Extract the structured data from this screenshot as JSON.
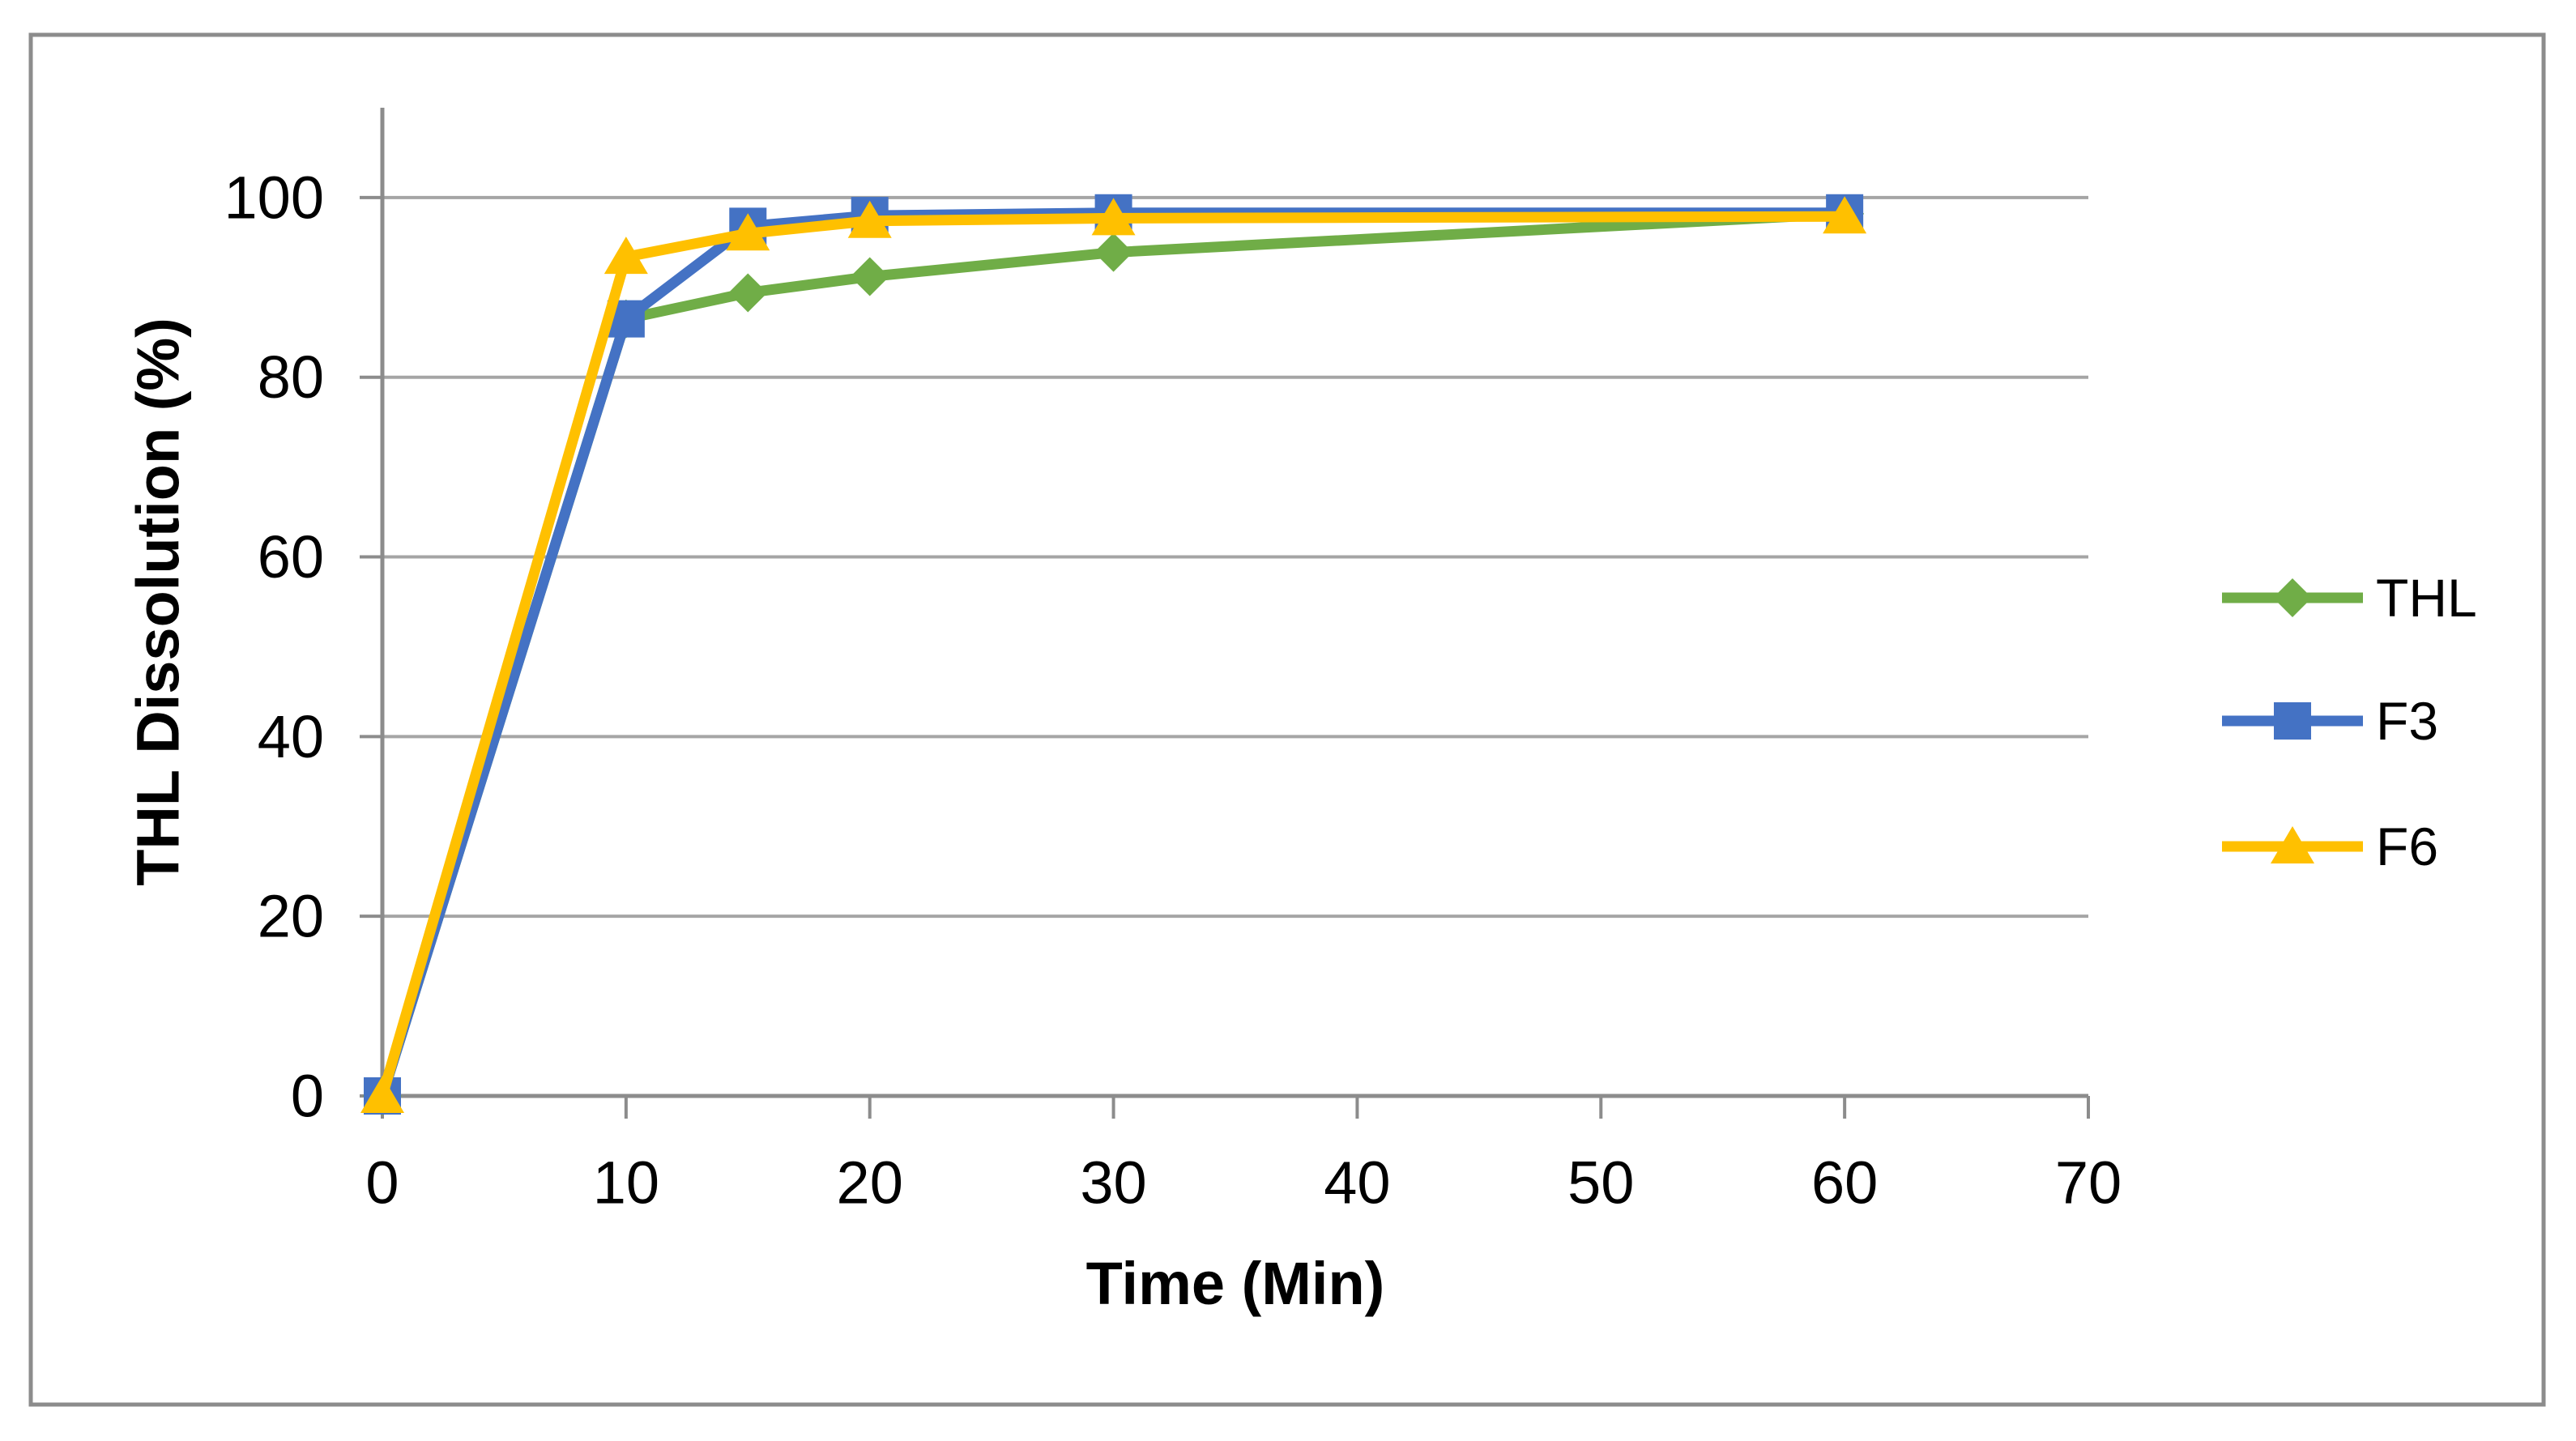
{
  "figure": {
    "background": "#ffffff",
    "border_color": "#8C8C8C"
  },
  "chart_data": {
    "type": "line",
    "title": "",
    "xlabel": "Time (Min)",
    "ylabel": "THL Dissolution (%)",
    "x": [
      0,
      10,
      15,
      20,
      30,
      60
    ],
    "series": [
      {
        "name": "THL",
        "color": "#70AD47",
        "marker": "diamond",
        "values": [
          0,
          86.5,
          89.4,
          91.2,
          93.9,
          98.2
        ]
      },
      {
        "name": "F3",
        "color": "#4472C4",
        "marker": "square",
        "values": [
          0,
          86.5,
          96.8,
          98.0,
          98.3,
          98.3
        ]
      },
      {
        "name": "F6",
        "color": "#FFC000",
        "marker": "triangle",
        "values": [
          0,
          93.4,
          96.0,
          97.4,
          97.7,
          97.9
        ]
      }
    ],
    "xlim": [
      0,
      70
    ],
    "ylim": [
      0,
      110
    ],
    "x_ticks": [
      0,
      10,
      20,
      30,
      40,
      50,
      60,
      70
    ],
    "x_tick_labels": [
      "0",
      "10",
      "20",
      "30",
      "40",
      "50",
      "60",
      "70"
    ],
    "y_ticks": [
      0,
      20,
      40,
      60,
      80,
      100
    ],
    "y_tick_labels": [
      "0",
      "20",
      "40",
      "60",
      "80",
      "100"
    ],
    "grid": true,
    "gridline_color": "#A5A5A5",
    "axis_color": "#8C8C8C",
    "legend": {
      "position": "right",
      "labels": [
        "THL",
        "F3",
        "F6"
      ]
    }
  }
}
